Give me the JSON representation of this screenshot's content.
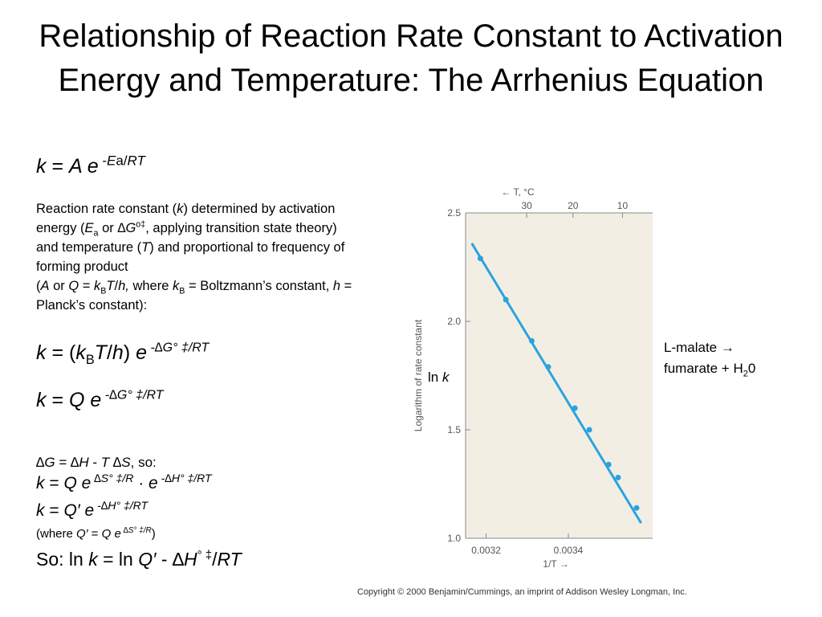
{
  "title": "Relationship of Reaction Rate Constant to Activation Energy and Temperature: The Arrhenius Equation",
  "eq1": {
    "k": "k",
    "eq": " = ",
    "A": "A",
    "e": " e",
    "exp_minus": " -",
    "Ea_E": "E",
    "Ea_a": "a",
    "slash": "/",
    "RT": "RT"
  },
  "para": {
    "l1a": "Reaction rate constant (",
    "l1k": "k",
    "l1b": ") determined by activation",
    "l2a": "energy (",
    "l2E": "E",
    "l2a_sub": "a",
    "l2b": " or ",
    "l2dG": "∆G",
    "l2sup": "o‡",
    "l2c": ", applying transition state theory)",
    "l3a": "and temperature (",
    "l3T": "T",
    "l3b": ") and proportional to frequency of",
    "l4": "forming product",
    "l5a": "(",
    "l5A": "A",
    "l5b": " or ",
    "l5Q": "Q",
    "l5c": " = ",
    "l5k": "k",
    "l5B": "B",
    "l5T": "T",
    "l5d": "/",
    "l5h": "h,",
    "l5e": " where ",
    "l5k2": "k",
    "l5B2": "B",
    "l5f": " = Boltzmann’s constant, ",
    "l5h2": "h",
    "l5g": " =",
    "l6": "Planck’s constant):"
  },
  "eq2": {
    "k": "k",
    "a": " = (",
    "k2": "k",
    "B": "B",
    "T": "T",
    "s": "/",
    "h": "h",
    "b": ") ",
    "e": "e",
    "exp": " -∆G° ‡/RT"
  },
  "eq3": {
    "k": "k",
    "a": " = ",
    "Q": "Q",
    "e": " e",
    "exp": " -∆G° ‡/RT"
  },
  "eq4": {
    "d1": "∆G",
    "a": " = ",
    "d2": "∆H",
    "b": " - ",
    "T": "T",
    "d3": " ∆S",
    "c": ", so:"
  },
  "eq5": {
    "k": "k",
    "a": " = ",
    "Q": "Q",
    "e": " e",
    "exp1": " ∆S° ‡/R",
    "dot": " · ",
    "e2": "e",
    "exp2": " -∆H° ‡/RT"
  },
  "eq6": {
    "k": "k",
    "a": " = ",
    "Q": "Q′",
    "e": " e",
    "exp": " -∆H° ‡/RT"
  },
  "eq7": {
    "a": "(where ",
    "Q": "Q′",
    "b": " = ",
    "Q2": "Q",
    "e": " e",
    "exp": " ∆S° ‡/R",
    "c": ")"
  },
  "eq8": {
    "a": "So: ln ",
    "k": "k",
    "b": " = ln ",
    "Q": "Q′",
    "c": " - ∆",
    "H": "H",
    "exp": "°  ‡",
    "d": "/",
    "RT": "RT"
  },
  "lnk": {
    "ln": "ln ",
    "k": "k"
  },
  "annot": {
    "l1": "L-malate →",
    "l2a": "fumarate + H",
    "l2sub": "2",
    "l2b": "0"
  },
  "copyright": "Copyright © 2000 Benjamin/Cummings, an imprint of Addison Wesley Longman, Inc.",
  "chart_data": {
    "type": "line",
    "ylabel": "Logarithm of rate constant",
    "xlabel": "1/T →",
    "top_label": "← T, °C",
    "xlim": [
      0.00315,
      0.003605
    ],
    "ylim": [
      1.0,
      2.5
    ],
    "x_ticks": [
      0.0032,
      0.0034
    ],
    "x_tick_labels": [
      "0.0032",
      "0.0034"
    ],
    "y_ticks": [
      1.0,
      1.5,
      2.0,
      2.5
    ],
    "y_tick_labels": [
      "1.0",
      "1.5",
      "2.0",
      "2.5"
    ],
    "top_ticks": [
      30,
      20,
      10
    ],
    "top_tick_labels": [
      "30",
      "20",
      "10"
    ],
    "line": {
      "x": [
        0.003165,
        0.003577
      ],
      "y": [
        2.36,
        1.07
      ]
    },
    "series": [
      {
        "x": [
          0.003186,
          0.003248,
          0.003311,
          0.003351,
          0.003416,
          0.003451,
          0.003498,
          0.003521,
          0.003566
        ],
        "y": [
          2.29,
          2.1,
          1.91,
          1.79,
          1.6,
          1.5,
          1.34,
          1.28,
          1.14
        ]
      }
    ],
    "grid": false,
    "color": "#2aa3df",
    "plot_bg": "#f3eee4"
  }
}
